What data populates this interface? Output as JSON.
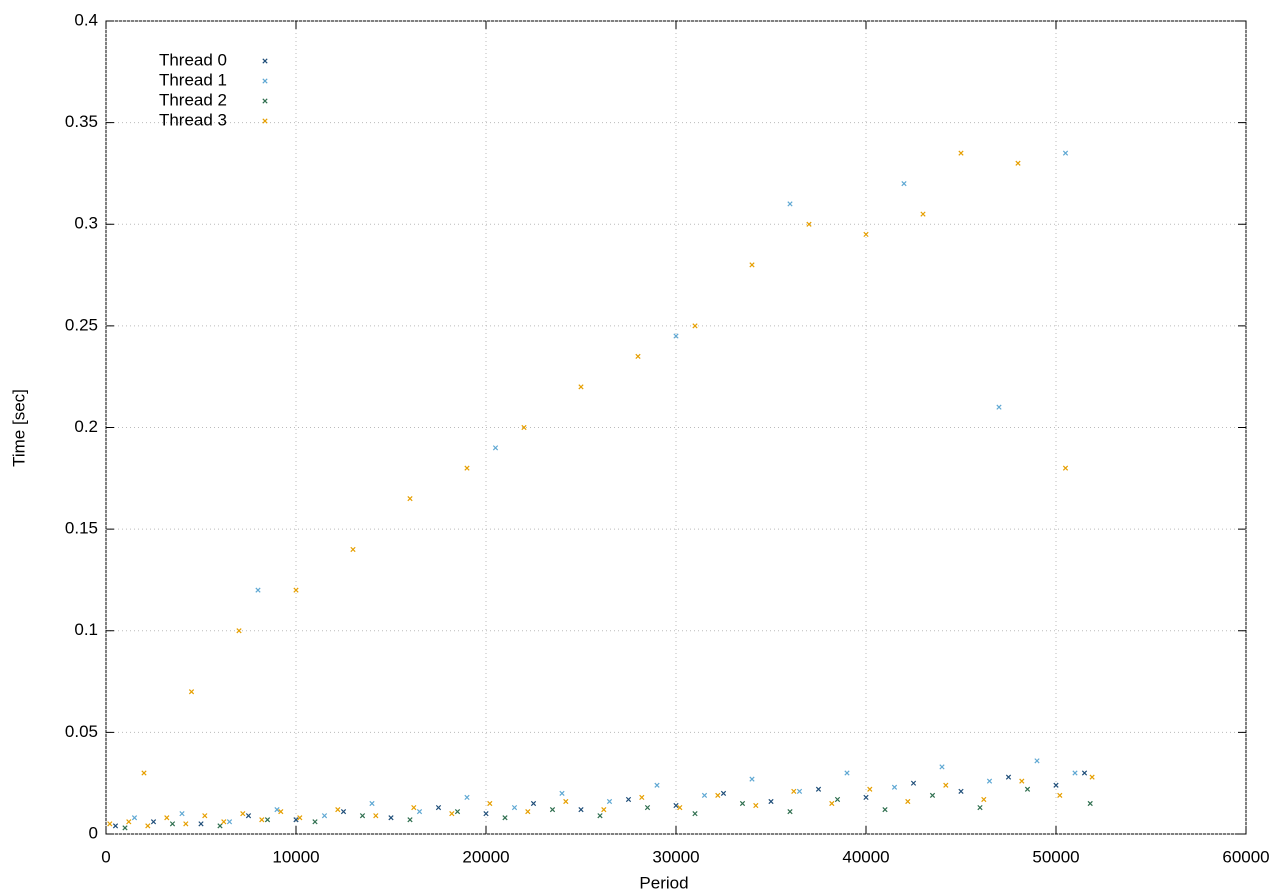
{
  "chart_data": {
    "type": "scatter",
    "x_label": "Period",
    "y_label": "Time [sec]",
    "xlim": [
      0,
      60000
    ],
    "ylim": [
      0,
      0.4
    ],
    "xticks": [
      0,
      10000,
      20000,
      30000,
      40000,
      50000,
      60000
    ],
    "yticks": [
      0,
      0.05,
      0.1,
      0.15,
      0.2,
      0.25,
      0.3,
      0.35,
      0.4
    ],
    "grid": true,
    "legend": "top-left",
    "series": [
      {
        "name": "Thread 0",
        "color": "#1f4e79",
        "x": [
          500,
          2500,
          5000,
          7500,
          10000,
          12500,
          15000,
          17500,
          20000,
          22500,
          25000,
          27500,
          30000,
          32500,
          35000,
          37500,
          40000,
          42500,
          45000,
          47500,
          50000,
          51500
        ],
        "values": [
          0.004,
          0.006,
          0.005,
          0.009,
          0.007,
          0.011,
          0.008,
          0.013,
          0.01,
          0.015,
          0.012,
          0.017,
          0.014,
          0.02,
          0.016,
          0.022,
          0.018,
          0.025,
          0.021,
          0.028,
          0.024,
          0.03
        ]
      },
      {
        "name": "Thread 1",
        "color": "#5fa8d3",
        "x": [
          1500,
          4000,
          6500,
          9000,
          11500,
          14000,
          16500,
          19000,
          21500,
          24000,
          26500,
          29000,
          31500,
          34000,
          36500,
          39000,
          41500,
          44000,
          46500,
          49000,
          51000,
          8000,
          20500,
          30000,
          36000,
          42000,
          47000,
          50500
        ],
        "values": [
          0.008,
          0.01,
          0.006,
          0.012,
          0.009,
          0.015,
          0.011,
          0.018,
          0.013,
          0.02,
          0.016,
          0.024,
          0.019,
          0.027,
          0.021,
          0.03,
          0.023,
          0.033,
          0.026,
          0.036,
          0.03,
          0.12,
          0.19,
          0.245,
          0.31,
          0.32,
          0.21,
          0.335
        ]
      },
      {
        "name": "Thread 2",
        "color": "#2f6f4f",
        "x": [
          1000,
          3500,
          6000,
          8500,
          11000,
          13500,
          16000,
          18500,
          21000,
          23500,
          26000,
          28500,
          31000,
          33500,
          36000,
          38500,
          41000,
          43500,
          46000,
          48500,
          51800
        ],
        "values": [
          0.003,
          0.005,
          0.004,
          0.007,
          0.006,
          0.009,
          0.007,
          0.011,
          0.008,
          0.012,
          0.009,
          0.013,
          0.01,
          0.015,
          0.011,
          0.017,
          0.012,
          0.019,
          0.013,
          0.022,
          0.015
        ]
      },
      {
        "name": "Thread 3",
        "color": "#e69f00",
        "x": [
          200,
          1200,
          2200,
          3200,
          4200,
          5200,
          6200,
          7200,
          8200,
          9200,
          10200,
          12200,
          14200,
          16200,
          18200,
          20200,
          22200,
          24200,
          26200,
          28200,
          30200,
          32200,
          34200,
          36200,
          38200,
          40200,
          42200,
          44200,
          46200,
          48200,
          50200,
          51900,
          2000,
          4500,
          7000,
          10000,
          13000,
          16000,
          19000,
          22000,
          25000,
          28000,
          31000,
          34000,
          37000,
          40000,
          43000,
          45000,
          48000,
          50500
        ],
        "values": [
          0.005,
          0.006,
          0.004,
          0.008,
          0.005,
          0.009,
          0.006,
          0.01,
          0.007,
          0.011,
          0.008,
          0.012,
          0.009,
          0.013,
          0.01,
          0.015,
          0.011,
          0.016,
          0.012,
          0.018,
          0.013,
          0.019,
          0.014,
          0.021,
          0.015,
          0.022,
          0.016,
          0.024,
          0.017,
          0.026,
          0.019,
          0.028,
          0.03,
          0.07,
          0.1,
          0.12,
          0.14,
          0.165,
          0.18,
          0.2,
          0.22,
          0.235,
          0.25,
          0.28,
          0.3,
          0.295,
          0.305,
          0.335,
          0.33,
          0.18
        ]
      }
    ]
  }
}
